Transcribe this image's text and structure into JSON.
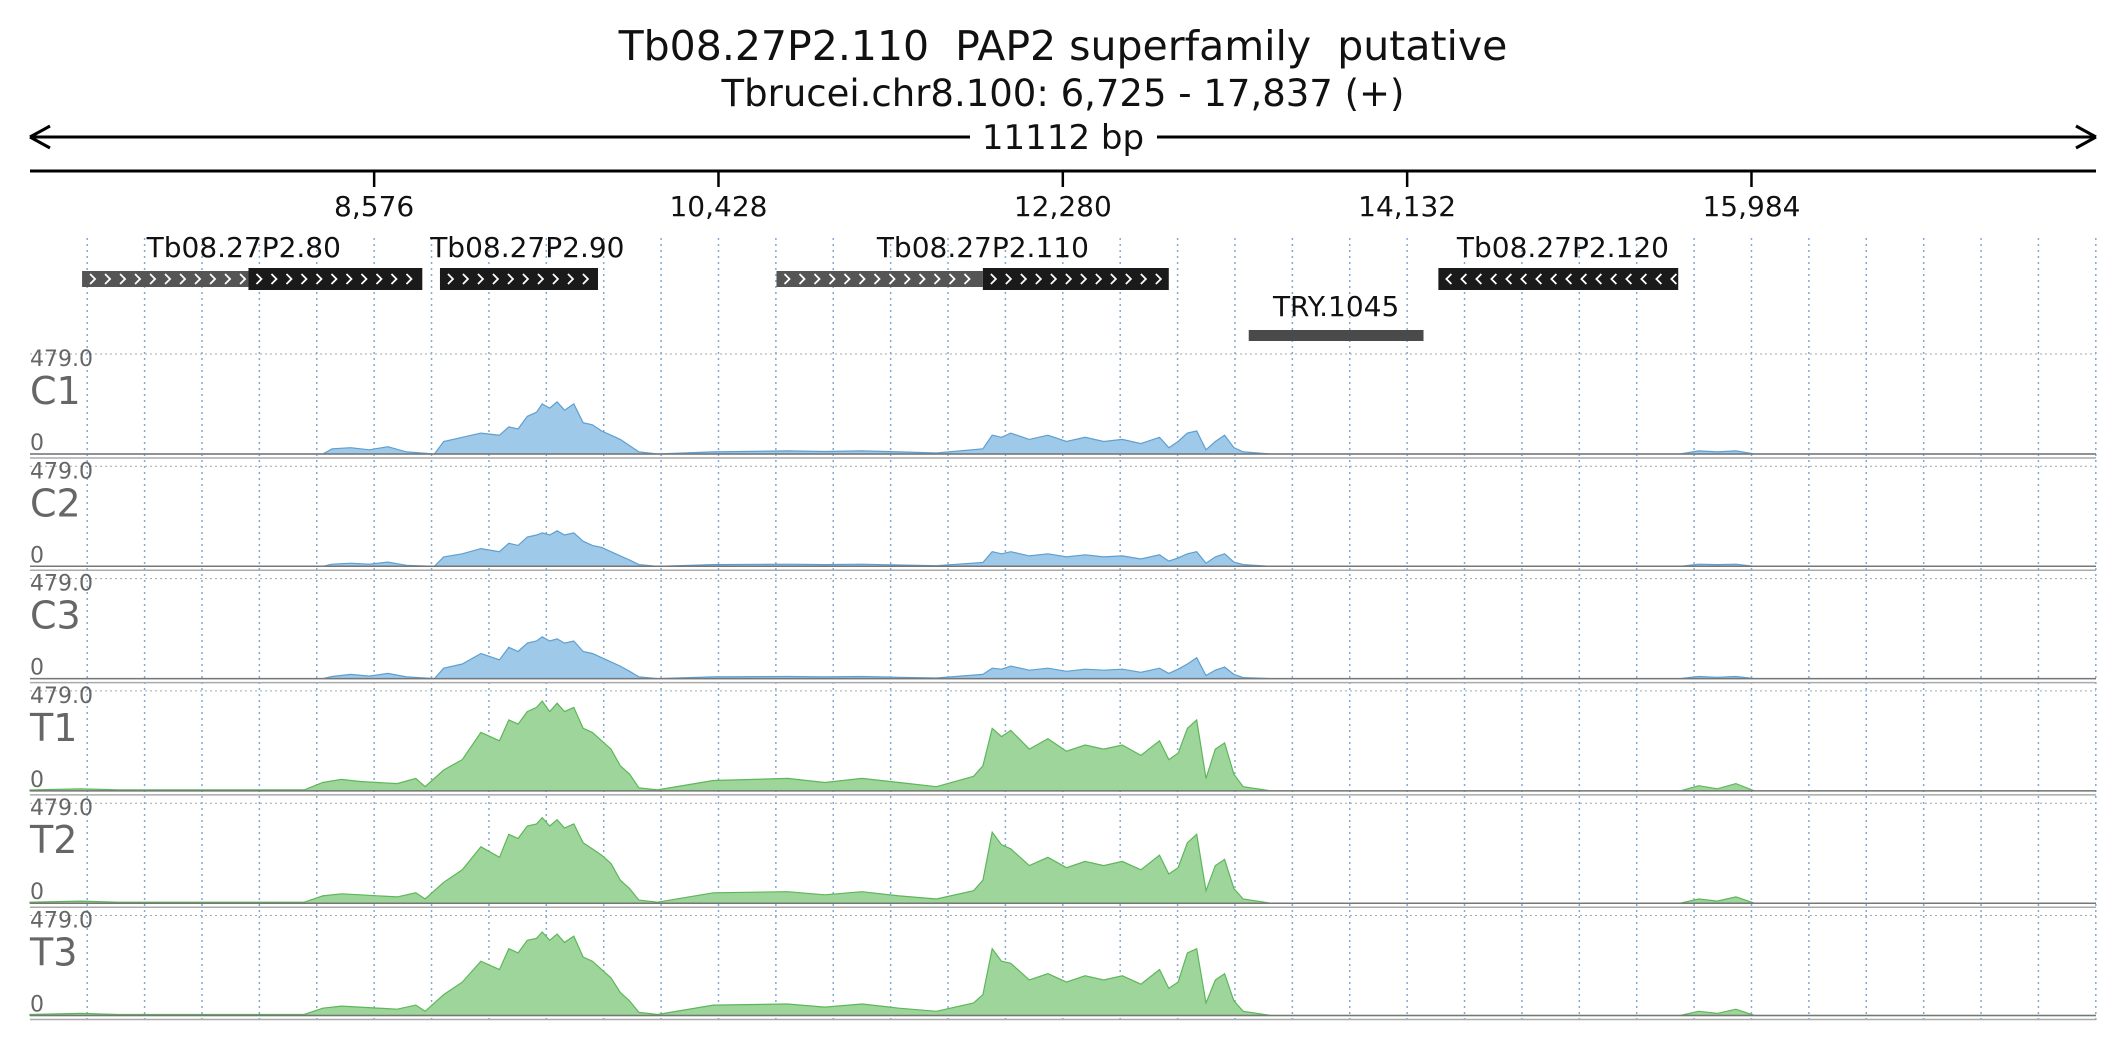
{
  "header": {
    "title": "Tb08.27P2.110  PAP2 superfamily  putative",
    "subtitle": "Tbrucei.chr8.100: 6,725 - 17,837 (+)",
    "span_label": "11112 bp"
  },
  "chart_data": {
    "type": "area",
    "region": {
      "chromosome": "Tbrucei.chr8.100",
      "start": 6725,
      "end": 17837,
      "strand": "+",
      "length_bp": 11112
    },
    "x_ticks": [
      {
        "value": 8576,
        "label": "8,576"
      },
      {
        "value": 10428,
        "label": "10,428"
      },
      {
        "value": 12280,
        "label": "12,280"
      },
      {
        "value": 14132,
        "label": "14,132"
      },
      {
        "value": 15984,
        "label": "15,984"
      }
    ],
    "grid": true,
    "genes": [
      {
        "name": "Tb08.27P2.80",
        "strand": "+",
        "utr": [
          7005,
          7900
        ],
        "cds": [
          7900,
          8835
        ]
      },
      {
        "name": "Tb08.27P2.90",
        "strand": "+",
        "utr": [
          8930,
          8930
        ],
        "cds": [
          8930,
          9780
        ]
      },
      {
        "name": "Tb08.27P2.110",
        "strand": "+",
        "utr": [
          10740,
          11850
        ],
        "cds": [
          11850,
          12850
        ]
      },
      {
        "name": "Tb08.27P2.120",
        "strand": "-",
        "utr": [
          14300,
          14300
        ],
        "cds": [
          14300,
          15590
        ]
      }
    ],
    "features": [
      {
        "name": "TRY.1045",
        "start": 13280,
        "end": 14220
      }
    ],
    "tracks": [
      {
        "name": "C1",
        "ymax_label": "479.0",
        "ymin_label": "0",
        "ylim": [
          0,
          479
        ],
        "color": "#9ec9e8",
        "edge": "#5f9fd0"
      },
      {
        "name": "C2",
        "ymax_label": "479.0",
        "ymin_label": "0",
        "ylim": [
          0,
          479
        ],
        "color": "#9ec9e8",
        "edge": "#5f9fd0"
      },
      {
        "name": "C3",
        "ymax_label": "479.0",
        "ymin_label": "0",
        "ylim": [
          0,
          479
        ],
        "color": "#9ec9e8",
        "edge": "#5f9fd0"
      },
      {
        "name": "T1",
        "ymax_label": "479.0",
        "ymin_label": "0",
        "ylim": [
          0,
          479
        ],
        "color": "#9dd59b",
        "edge": "#5db75a"
      },
      {
        "name": "T2",
        "ymax_label": "479.0",
        "ymin_label": "0",
        "ylim": [
          0,
          479
        ],
        "color": "#9dd59b",
        "edge": "#5db75a"
      },
      {
        "name": "T3",
        "ymax_label": "479.0",
        "ymin_label": "0",
        "ylim": [
          0,
          479
        ],
        "color": "#9dd59b",
        "edge": "#5db75a"
      }
    ],
    "coverage_profiles": [
      {
        "track": "C1",
        "x": [
          6725,
          8300,
          8350,
          8450,
          8550,
          8650,
          8750,
          8900,
          8950,
          9050,
          9150,
          9250,
          9300,
          9350,
          9400,
          9450,
          9480,
          9520,
          9560,
          9600,
          9650,
          9700,
          9750,
          9800,
          9850,
          9900,
          9950,
          10000,
          10100,
          10400,
          10800,
          11000,
          11200,
          11400,
          11600,
          11850,
          11900,
          11950,
          12000,
          12100,
          12200,
          12300,
          12400,
          12500,
          12600,
          12700,
          12800,
          12850,
          12900,
          12950,
          13000,
          13050,
          13100,
          13150,
          13200,
          13250,
          13400,
          15600,
          15700,
          15800,
          15900,
          16000,
          17837
        ],
        "y": [
          0,
          0,
          25,
          30,
          20,
          35,
          10,
          0,
          60,
          80,
          100,
          90,
          130,
          120,
          180,
          200,
          240,
          220,
          250,
          210,
          240,
          150,
          140,
          110,
          90,
          70,
          40,
          10,
          0,
          10,
          15,
          12,
          15,
          10,
          5,
          25,
          90,
          80,
          100,
          70,
          90,
          60,
          80,
          60,
          70,
          50,
          80,
          30,
          60,
          100,
          110,
          20,
          60,
          90,
          30,
          10,
          0,
          0,
          15,
          10,
          15,
          0,
          0
        ]
      },
      {
        "track": "C2",
        "x": [
          6725,
          8300,
          8350,
          8450,
          8550,
          8650,
          8750,
          8900,
          8950,
          9050,
          9150,
          9250,
          9300,
          9350,
          9400,
          9450,
          9480,
          9520,
          9560,
          9600,
          9650,
          9700,
          9750,
          9800,
          9850,
          9900,
          9950,
          10000,
          10100,
          10400,
          10800,
          11000,
          11200,
          11400,
          11600,
          11850,
          11900,
          11950,
          12000,
          12100,
          12200,
          12300,
          12400,
          12500,
          12600,
          12700,
          12800,
          12850,
          12900,
          12950,
          13000,
          13050,
          13100,
          13150,
          13200,
          13250,
          13400,
          15600,
          15700,
          15800,
          15900,
          16000,
          17837
        ],
        "y": [
          0,
          0,
          10,
          15,
          10,
          20,
          5,
          0,
          45,
          60,
          85,
          70,
          110,
          100,
          140,
          150,
          160,
          150,
          170,
          150,
          160,
          120,
          100,
          90,
          70,
          50,
          30,
          8,
          0,
          8,
          10,
          8,
          10,
          6,
          3,
          18,
          70,
          60,
          70,
          50,
          60,
          45,
          55,
          45,
          50,
          35,
          55,
          25,
          40,
          60,
          70,
          15,
          45,
          60,
          20,
          8,
          0,
          0,
          10,
          8,
          10,
          0,
          0
        ]
      },
      {
        "track": "C3",
        "x": [
          6725,
          8300,
          8350,
          8450,
          8550,
          8650,
          8750,
          8900,
          8950,
          9050,
          9150,
          9250,
          9300,
          9350,
          9400,
          9450,
          9480,
          9520,
          9560,
          9600,
          9650,
          9700,
          9750,
          9800,
          9850,
          9900,
          9950,
          10000,
          10100,
          10400,
          10800,
          11000,
          11200,
          11400,
          11600,
          11850,
          11900,
          11950,
          12000,
          12100,
          12200,
          12300,
          12400,
          12500,
          12600,
          12700,
          12800,
          12850,
          12900,
          12950,
          13000,
          13050,
          13100,
          13150,
          13200,
          13250,
          13400,
          15600,
          15700,
          15800,
          15900,
          16000,
          17837
        ],
        "y": [
          0,
          0,
          10,
          20,
          12,
          25,
          8,
          0,
          50,
          70,
          120,
          90,
          150,
          130,
          170,
          180,
          200,
          180,
          190,
          170,
          180,
          130,
          120,
          100,
          80,
          60,
          35,
          8,
          0,
          8,
          10,
          8,
          10,
          6,
          3,
          20,
          50,
          45,
          60,
          40,
          50,
          35,
          45,
          40,
          45,
          30,
          50,
          25,
          45,
          70,
          100,
          15,
          40,
          55,
          20,
          5,
          0,
          0,
          10,
          6,
          10,
          0,
          0
        ]
      },
      {
        "track": "T1",
        "x": [
          6725,
          7000,
          7200,
          8200,
          8300,
          8400,
          8500,
          8700,
          8800,
          8850,
          8950,
          9050,
          9150,
          9250,
          9300,
          9350,
          9400,
          9450,
          9480,
          9520,
          9560,
          9600,
          9650,
          9700,
          9750,
          9800,
          9850,
          9900,
          9950,
          10000,
          10100,
          10400,
          10800,
          11000,
          11200,
          11400,
          11600,
          11800,
          11850,
          11900,
          11950,
          12000,
          12100,
          12200,
          12300,
          12400,
          12500,
          12600,
          12700,
          12800,
          12850,
          12900,
          12950,
          13000,
          13050,
          13100,
          13150,
          13200,
          13250,
          13400,
          15600,
          15700,
          15800,
          15900,
          16000,
          17837
        ],
        "y": [
          5,
          10,
          5,
          5,
          40,
          55,
          45,
          35,
          60,
          20,
          100,
          150,
          280,
          240,
          340,
          320,
          380,
          400,
          430,
          380,
          420,
          380,
          400,
          300,
          280,
          240,
          200,
          120,
          80,
          15,
          5,
          50,
          60,
          40,
          60,
          40,
          20,
          70,
          120,
          300,
          260,
          290,
          200,
          250,
          190,
          220,
          200,
          220,
          170,
          240,
          150,
          180,
          300,
          340,
          60,
          200,
          230,
          80,
          20,
          0,
          0,
          25,
          10,
          35,
          0,
          0
        ]
      },
      {
        "track": "T2",
        "x": [
          6725,
          7000,
          7200,
          8200,
          8300,
          8400,
          8500,
          8700,
          8800,
          8850,
          8950,
          9050,
          9150,
          9250,
          9300,
          9350,
          9400,
          9450,
          9480,
          9520,
          9560,
          9600,
          9650,
          9700,
          9750,
          9800,
          9850,
          9900,
          9950,
          10000,
          10100,
          10400,
          10800,
          11000,
          11200,
          11400,
          11600,
          11800,
          11850,
          11900,
          11950,
          12000,
          12100,
          12200,
          12300,
          12400,
          12500,
          12600,
          12700,
          12800,
          12850,
          12900,
          12950,
          13000,
          13050,
          13100,
          13150,
          13200,
          13250,
          13400,
          15600,
          15700,
          15800,
          15900,
          16000,
          17837
        ],
        "y": [
          5,
          10,
          5,
          5,
          35,
          45,
          40,
          30,
          50,
          20,
          100,
          160,
          270,
          220,
          330,
          310,
          370,
          380,
          410,
          370,
          400,
          360,
          380,
          290,
          260,
          230,
          190,
          110,
          70,
          15,
          5,
          50,
          55,
          40,
          55,
          35,
          20,
          60,
          110,
          340,
          280,
          260,
          180,
          220,
          170,
          200,
          180,
          200,
          160,
          230,
          140,
          170,
          290,
          330,
          60,
          180,
          210,
          70,
          20,
          0,
          0,
          20,
          10,
          30,
          0,
          0
        ]
      },
      {
        "track": "T3",
        "x": [
          6725,
          7000,
          7200,
          8200,
          8300,
          8400,
          8500,
          8700,
          8800,
          8850,
          8950,
          9050,
          9150,
          9250,
          9300,
          9350,
          9400,
          9450,
          9480,
          9520,
          9560,
          9600,
          9650,
          9700,
          9750,
          9800,
          9850,
          9900,
          9950,
          10000,
          10100,
          10400,
          10800,
          11000,
          11200,
          11400,
          11600,
          11800,
          11850,
          11900,
          11950,
          12000,
          12100,
          12200,
          12300,
          12400,
          12500,
          12600,
          12700,
          12800,
          12850,
          12900,
          12950,
          13000,
          13050,
          13100,
          13150,
          13200,
          13250,
          13400,
          15600,
          15700,
          15800,
          15900,
          16000,
          17837
        ],
        "y": [
          5,
          10,
          5,
          5,
          35,
          45,
          40,
          30,
          50,
          20,
          100,
          160,
          260,
          220,
          320,
          300,
          360,
          370,
          400,
          360,
          390,
          350,
          380,
          280,
          260,
          220,
          180,
          110,
          70,
          15,
          5,
          50,
          55,
          40,
          55,
          35,
          20,
          60,
          100,
          320,
          260,
          250,
          170,
          200,
          160,
          190,
          170,
          190,
          150,
          220,
          130,
          160,
          300,
          320,
          60,
          170,
          200,
          70,
          20,
          0,
          0,
          20,
          10,
          30,
          0,
          0
        ]
      }
    ]
  }
}
